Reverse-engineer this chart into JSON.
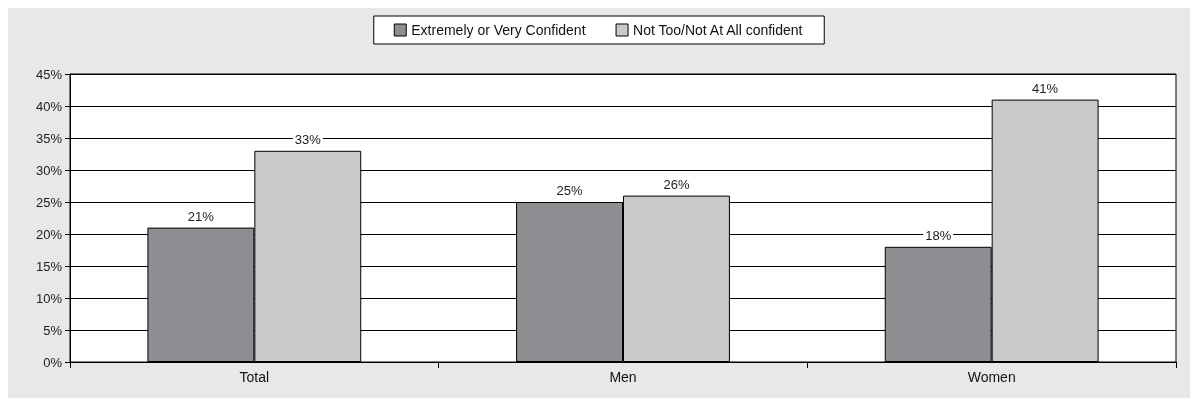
{
  "chart_data": {
    "type": "bar",
    "categories": [
      "Total",
      "Men",
      "Women"
    ],
    "series": [
      {
        "name": "Extremely or Very Confident",
        "color": "#8e8e92",
        "values": [
          21,
          25,
          18
        ],
        "value_labels": [
          "21%",
          "25%",
          "18%"
        ]
      },
      {
        "name": "Not Too/Not At All confident",
        "color": "#c9c9cc",
        "values": [
          33,
          26,
          41
        ],
        "value_labels": [
          "33%",
          "26%",
          "41%"
        ]
      }
    ],
    "ylim": [
      0,
      45
    ],
    "yticks": [
      {
        "value": 0,
        "label": "0%"
      },
      {
        "value": 5,
        "label": "5%"
      },
      {
        "value": 10,
        "label": "10%"
      },
      {
        "value": 15,
        "label": "15%"
      },
      {
        "value": 20,
        "label": "20%"
      },
      {
        "value": 25,
        "label": "25%"
      },
      {
        "value": 30,
        "label": "30%"
      },
      {
        "value": 35,
        "label": "35%"
      },
      {
        "value": 40,
        "label": "40%"
      },
      {
        "value": 45,
        "label": "45%"
      }
    ],
    "grid": "y",
    "legend": "top"
  }
}
